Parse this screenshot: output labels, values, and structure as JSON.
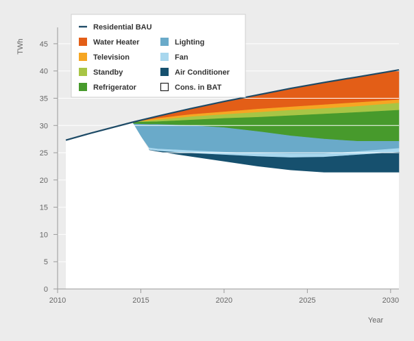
{
  "chart_data": {
    "type": "area",
    "ylabel": "TWh",
    "xlabel": "Year",
    "xlim": [
      2010,
      2030.5
    ],
    "ylim": [
      0,
      48
    ],
    "xticks": [
      2010,
      2015,
      2020,
      2025,
      2030
    ],
    "yticks": [
      0,
      5,
      10,
      15,
      20,
      25,
      30,
      35,
      40,
      45
    ],
    "grid": "horizontal",
    "legend_position": "top-left",
    "bau_line": {
      "name": "Residential BAU",
      "color": "#1d4a66",
      "x": [
        2010.5,
        2012,
        2014.5,
        2016,
        2018,
        2020,
        2022,
        2024,
        2026,
        2028,
        2030.5
      ],
      "y": [
        27.3,
        28.6,
        30.6,
        31.7,
        33.1,
        34.4,
        35.6,
        36.8,
        37.9,
        38.9,
        40.2
      ]
    },
    "bands": [
      {
        "name": "Water Heater",
        "color": "#e35e17",
        "x": [
          2014.5,
          2016,
          2018,
          2020,
          2022,
          2024,
          2026,
          2028,
          2030.5
        ],
        "top": [
          30.6,
          31.7,
          33.1,
          34.4,
          35.6,
          36.8,
          37.9,
          38.9,
          40.2
        ],
        "bottom": [
          30.6,
          31.3,
          32.0,
          32.5,
          33.0,
          33.4,
          33.8,
          34.2,
          34.7
        ]
      },
      {
        "name": "Television",
        "color": "#f6a623",
        "x": [
          2014.5,
          2016,
          2018,
          2020,
          2022,
          2024,
          2026,
          2028,
          2030.5
        ],
        "top": [
          30.6,
          31.3,
          32.0,
          32.5,
          33.0,
          33.4,
          33.8,
          34.2,
          34.7
        ],
        "bottom": [
          30.6,
          31.0,
          31.6,
          32.0,
          32.4,
          32.8,
          33.1,
          33.5,
          34.1
        ]
      },
      {
        "name": "Standby",
        "color": "#a8c545",
        "x": [
          2014.5,
          2016,
          2018,
          2020,
          2022,
          2024,
          2026,
          2028,
          2030.5
        ],
        "top": [
          30.6,
          31.0,
          31.6,
          32.0,
          32.4,
          32.8,
          33.1,
          33.5,
          34.1
        ],
        "bottom": [
          30.6,
          30.7,
          31.0,
          31.3,
          31.5,
          31.8,
          32.1,
          32.4,
          32.8
        ]
      },
      {
        "name": "Refrigerator",
        "color": "#479a2c",
        "x": [
          2014.5,
          2016,
          2018,
          2020,
          2022,
          2024,
          2026,
          2028,
          2030.5
        ],
        "top": [
          30.6,
          30.7,
          31.0,
          31.3,
          31.5,
          31.8,
          32.1,
          32.4,
          32.8
        ],
        "bottom": [
          30.3,
          30.2,
          30.0,
          29.6,
          28.9,
          28.1,
          27.5,
          27.1,
          27.1
        ]
      },
      {
        "name": "Lighting",
        "color": "#6aaac9",
        "x": [
          2014.5,
          2015.5,
          2016,
          2018,
          2020,
          2022,
          2024,
          2026,
          2028,
          2030.5
        ],
        "top": [
          30.3,
          30.2,
          30.2,
          30.0,
          29.6,
          28.9,
          28.1,
          27.5,
          27.1,
          27.1
        ],
        "bottom": [
          30.3,
          25.9,
          25.7,
          25.4,
          25.1,
          24.9,
          24.8,
          24.8,
          25.2,
          25.8
        ]
      },
      {
        "name": "Fan",
        "color": "#a8d7ee",
        "x": [
          2015.5,
          2016,
          2018,
          2020,
          2022,
          2024,
          2026,
          2028,
          2030.5
        ],
        "top": [
          25.9,
          25.7,
          25.4,
          25.1,
          24.9,
          24.8,
          24.8,
          25.2,
          25.8
        ],
        "bottom": [
          25.5,
          25.3,
          24.9,
          24.6,
          24.3,
          24.1,
          24.2,
          24.6,
          25.1
        ]
      },
      {
        "name": "Air Conditioner",
        "color": "#16506e",
        "x": [
          2015.5,
          2016,
          2018,
          2020,
          2022,
          2024,
          2026,
          2028,
          2030.5
        ],
        "top": [
          25.5,
          25.3,
          24.9,
          24.6,
          24.3,
          24.1,
          24.2,
          24.6,
          25.1
        ],
        "bottom": [
          25.5,
          25.2,
          24.3,
          23.4,
          22.5,
          21.8,
          21.4,
          21.4,
          21.4
        ]
      }
    ],
    "bat_area": {
      "name": "Cons. in BAT",
      "color": "#ffffff",
      "x": [
        2010.5,
        2012,
        2014.5,
        2015.5,
        2016,
        2018,
        2020,
        2022,
        2024,
        2026,
        2028,
        2030.5
      ],
      "y": [
        27.3,
        28.6,
        30.6,
        25.5,
        25.2,
        24.3,
        23.4,
        22.5,
        21.8,
        21.4,
        21.4,
        21.4
      ]
    },
    "legend": [
      {
        "name": "Residential BAU",
        "symbol": "line",
        "color": "#1d4a66"
      },
      {
        "name": "Water Heater",
        "symbol": "box",
        "color": "#e35e17"
      },
      {
        "name": "Television",
        "symbol": "box",
        "color": "#f6a623"
      },
      {
        "name": "Standby",
        "symbol": "box",
        "color": "#a8c545"
      },
      {
        "name": "Refrigerator",
        "symbol": "box",
        "color": "#479a2c"
      },
      {
        "name": "Lighting",
        "symbol": "box",
        "color": "#6aaac9"
      },
      {
        "name": "Fan",
        "symbol": "box",
        "color": "#a8d7ee"
      },
      {
        "name": "Air Conditioner",
        "symbol": "box",
        "color": "#16506e"
      },
      {
        "name": "Cons. in BAT",
        "symbol": "outline-box",
        "color": "#ffffff"
      }
    ]
  }
}
